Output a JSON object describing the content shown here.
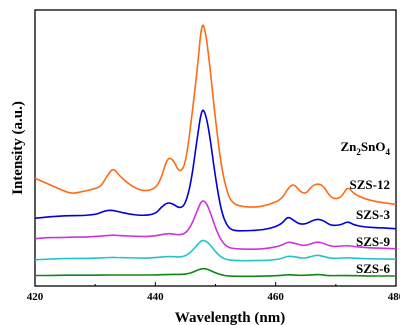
{
  "chart_data": {
    "type": "line",
    "xlabel": "Wavelength (nm)",
    "ylabel": "Intensity (a.u.)",
    "xlim": [
      420,
      480
    ],
    "x_ticks": [
      420,
      440,
      460,
      480
    ],
    "y_ticks_shown": false,
    "grid": false,
    "series": [
      {
        "name": "Zn₂SnO₄",
        "label_main": "Zn",
        "label_sub": "2",
        "label_mid": "SnO",
        "label_sub2": "4",
        "color": "#ff6a14",
        "points": [
          [
            420,
            0.36
          ],
          [
            422,
            0.34
          ],
          [
            424,
            0.32
          ],
          [
            426,
            0.3
          ],
          [
            428,
            0.31
          ],
          [
            430,
            0.32
          ],
          [
            431,
            0.33
          ],
          [
            432,
            0.37
          ],
          [
            433,
            0.4
          ],
          [
            434,
            0.37
          ],
          [
            436,
            0.33
          ],
          [
            438,
            0.31
          ],
          [
            440,
            0.32
          ],
          [
            441,
            0.36
          ],
          [
            442,
            0.44
          ],
          [
            443,
            0.43
          ],
          [
            444,
            0.38
          ],
          [
            445,
            0.41
          ],
          [
            446,
            0.58
          ],
          [
            447,
            0.78
          ],
          [
            447.7,
            0.955
          ],
          [
            448.3,
            0.925
          ],
          [
            449,
            0.8
          ],
          [
            450,
            0.58
          ],
          [
            451,
            0.4
          ],
          [
            452,
            0.3
          ],
          [
            453,
            0.26
          ],
          [
            455,
            0.25
          ],
          [
            457,
            0.25
          ],
          [
            459,
            0.26
          ],
          [
            461,
            0.28
          ],
          [
            462,
            0.32
          ],
          [
            463,
            0.34
          ],
          [
            464,
            0.31
          ],
          [
            465,
            0.3
          ],
          [
            466,
            0.33
          ],
          [
            467,
            0.34
          ],
          [
            468,
            0.33
          ],
          [
            469,
            0.29
          ],
          [
            470,
            0.28
          ],
          [
            471,
            0.29
          ],
          [
            472,
            0.33
          ],
          [
            473,
            0.3
          ],
          [
            475,
            0.28
          ],
          [
            477,
            0.27
          ],
          [
            480,
            0.26
          ]
        ]
      },
      {
        "name": "SZS-12",
        "color": "#0000dd",
        "points": [
          [
            420,
            0.208
          ],
          [
            422,
            0.212
          ],
          [
            424,
            0.216
          ],
          [
            426,
            0.218
          ],
          [
            428,
            0.218
          ],
          [
            430,
            0.222
          ],
          [
            431,
            0.23
          ],
          [
            432,
            0.238
          ],
          [
            433,
            0.238
          ],
          [
            434,
            0.232
          ],
          [
            436,
            0.222
          ],
          [
            438,
            0.218
          ],
          [
            440,
            0.224
          ],
          [
            441,
            0.25
          ],
          [
            442,
            0.268
          ],
          [
            443,
            0.262
          ],
          [
            444,
            0.245
          ],
          [
            445,
            0.26
          ],
          [
            446,
            0.35
          ],
          [
            447,
            0.52
          ],
          [
            447.7,
            0.625
          ],
          [
            448.3,
            0.61
          ],
          [
            449,
            0.53
          ],
          [
            450,
            0.36
          ],
          [
            451,
            0.23
          ],
          [
            452,
            0.175
          ],
          [
            453,
            0.16
          ],
          [
            455,
            0.16
          ],
          [
            457,
            0.162
          ],
          [
            459,
            0.168
          ],
          [
            461,
            0.185
          ],
          [
            462,
            0.215
          ],
          [
            463,
            0.2
          ],
          [
            464,
            0.185
          ],
          [
            465,
            0.186
          ],
          [
            466,
            0.198
          ],
          [
            467,
            0.205
          ],
          [
            468,
            0.198
          ],
          [
            469,
            0.182
          ],
          [
            470,
            0.18
          ],
          [
            471,
            0.184
          ],
          [
            472,
            0.196
          ],
          [
            473,
            0.182
          ],
          [
            475,
            0.174
          ],
          [
            477,
            0.172
          ],
          [
            480,
            0.168
          ]
        ]
      },
      {
        "name": "SZS-3",
        "color": "#cc33dd",
        "points": [
          [
            420,
            0.13
          ],
          [
            422,
            0.134
          ],
          [
            424,
            0.134
          ],
          [
            426,
            0.136
          ],
          [
            428,
            0.136
          ],
          [
            430,
            0.138
          ],
          [
            432,
            0.142
          ],
          [
            433,
            0.144
          ],
          [
            434,
            0.142
          ],
          [
            436,
            0.14
          ],
          [
            438,
            0.138
          ],
          [
            440,
            0.14
          ],
          [
            442,
            0.15
          ],
          [
            443,
            0.148
          ],
          [
            444,
            0.144
          ],
          [
            445,
            0.15
          ],
          [
            446,
            0.18
          ],
          [
            447,
            0.24
          ],
          [
            447.7,
            0.275
          ],
          [
            448.3,
            0.272
          ],
          [
            449,
            0.24
          ],
          [
            450,
            0.17
          ],
          [
            451,
            0.12
          ],
          [
            452,
            0.098
          ],
          [
            453,
            0.092
          ],
          [
            455,
            0.09
          ],
          [
            457,
            0.09
          ],
          [
            459,
            0.094
          ],
          [
            461,
            0.104
          ],
          [
            462,
            0.118
          ],
          [
            463,
            0.114
          ],
          [
            464,
            0.106
          ],
          [
            465,
            0.104
          ],
          [
            466,
            0.112
          ],
          [
            467,
            0.118
          ],
          [
            468,
            0.112
          ],
          [
            469,
            0.102
          ],
          [
            470,
            0.1
          ],
          [
            472,
            0.104
          ],
          [
            473,
            0.1
          ],
          [
            475,
            0.096
          ],
          [
            477,
            0.094
          ],
          [
            480,
            0.092
          ]
        ]
      },
      {
        "name": "SZS-9",
        "color": "#22c4cc",
        "points": [
          [
            420,
            0.05
          ],
          [
            422,
            0.052
          ],
          [
            424,
            0.054
          ],
          [
            426,
            0.055
          ],
          [
            428,
            0.055
          ],
          [
            430,
            0.056
          ],
          [
            432,
            0.058
          ],
          [
            433,
            0.059
          ],
          [
            434,
            0.058
          ],
          [
            436,
            0.057
          ],
          [
            438,
            0.056
          ],
          [
            440,
            0.058
          ],
          [
            442,
            0.062
          ],
          [
            443,
            0.062
          ],
          [
            444,
            0.06
          ],
          [
            445,
            0.064
          ],
          [
            446,
            0.08
          ],
          [
            447,
            0.108
          ],
          [
            447.7,
            0.124
          ],
          [
            448.3,
            0.122
          ],
          [
            449,
            0.11
          ],
          [
            450,
            0.08
          ],
          [
            451,
            0.058
          ],
          [
            452,
            0.05
          ],
          [
            453,
            0.047
          ],
          [
            455,
            0.046
          ],
          [
            457,
            0.047
          ],
          [
            459,
            0.048
          ],
          [
            461,
            0.054
          ],
          [
            462,
            0.064
          ],
          [
            463,
            0.062
          ],
          [
            464,
            0.057
          ],
          [
            465,
            0.056
          ],
          [
            466,
            0.063
          ],
          [
            467,
            0.068
          ],
          [
            468,
            0.062
          ],
          [
            469,
            0.056
          ],
          [
            470,
            0.055
          ],
          [
            472,
            0.058
          ],
          [
            473,
            0.056
          ],
          [
            475,
            0.054
          ],
          [
            477,
            0.053
          ],
          [
            480,
            0.052
          ]
        ]
      },
      {
        "name": "SZS-6",
        "color": "#118811",
        "points": [
          [
            420,
            -0.01
          ],
          [
            422,
            -0.01
          ],
          [
            424,
            -0.009
          ],
          [
            426,
            -0.009
          ],
          [
            428,
            -0.009
          ],
          [
            430,
            -0.009
          ],
          [
            432,
            -0.008
          ],
          [
            434,
            -0.008
          ],
          [
            436,
            -0.008
          ],
          [
            438,
            -0.008
          ],
          [
            440,
            -0.008
          ],
          [
            442,
            -0.006
          ],
          [
            444,
            -0.006
          ],
          [
            445,
            -0.005
          ],
          [
            446,
            0.0
          ],
          [
            447,
            0.01
          ],
          [
            447.7,
            0.016
          ],
          [
            448.3,
            0.016
          ],
          [
            449,
            0.01
          ],
          [
            450,
            0.0
          ],
          [
            451,
            -0.008
          ],
          [
            452,
            -0.012
          ],
          [
            453,
            -0.013
          ],
          [
            455,
            -0.013
          ],
          [
            457,
            -0.013
          ],
          [
            459,
            -0.012
          ],
          [
            461,
            -0.01
          ],
          [
            462,
            -0.007
          ],
          [
            463,
            -0.008
          ],
          [
            464,
            -0.01
          ],
          [
            466,
            -0.008
          ],
          [
            467,
            -0.006
          ],
          [
            468,
            -0.008
          ],
          [
            469,
            -0.011
          ],
          [
            472,
            -0.01
          ],
          [
            475,
            -0.012
          ],
          [
            477,
            -0.012
          ],
          [
            480,
            -0.012
          ]
        ]
      }
    ]
  }
}
